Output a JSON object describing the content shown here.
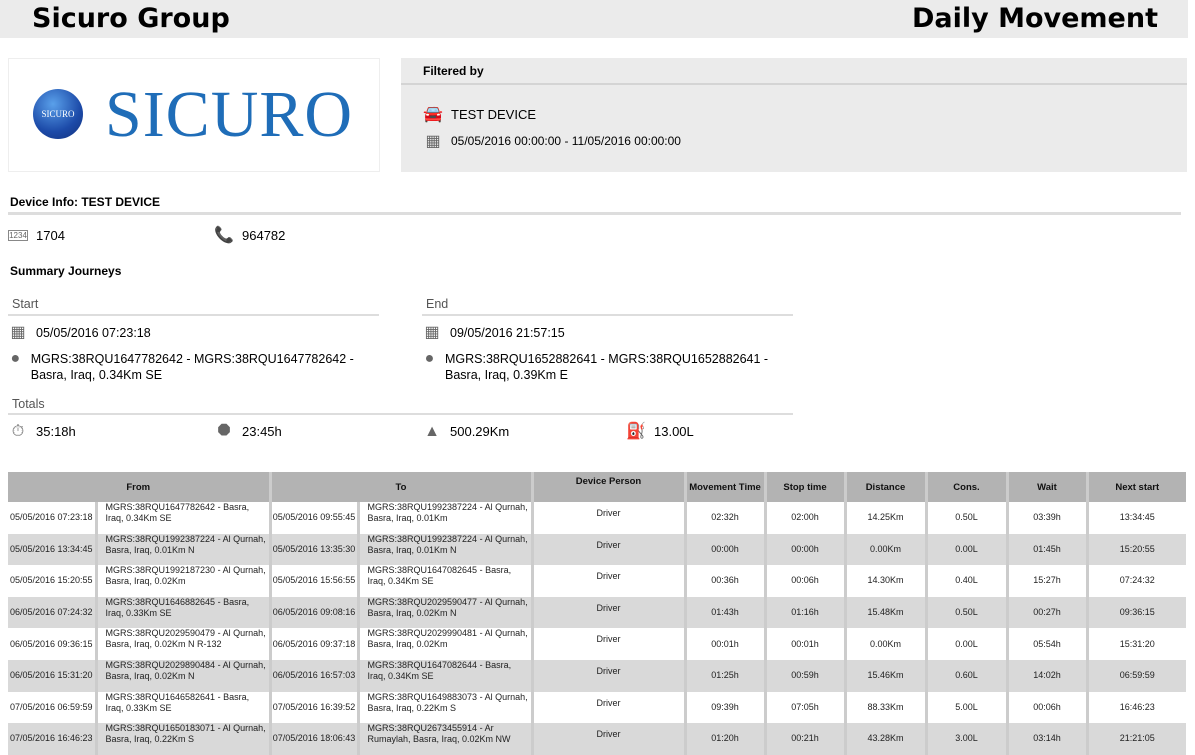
{
  "header": {
    "brand": "Sicuro Group",
    "report_title": "Daily Movement"
  },
  "logo": {
    "text": "SICURO",
    "badge": "SICURO"
  },
  "filter": {
    "heading": "Filtered by",
    "device": "TEST DEVICE",
    "date_range": "05/05/2016 00:00:00 - 11/05/2016 00:00:00",
    "icons": [
      "car-icon",
      "calendar-icon"
    ]
  },
  "device_info": {
    "heading": "Device Info: TEST DEVICE",
    "id": "1704",
    "phone": "964782"
  },
  "summary": {
    "heading": "Summary Journeys",
    "start_label": "Start",
    "end_label": "End",
    "start_date": "05/05/2016 07:23:18",
    "start_location": "MGRS:38RQU1647782642 - MGRS:38RQU1647782642 - Basra, Iraq, 0.34Km SE",
    "end_date": "09/05/2016 21:57:15",
    "end_location": "MGRS:38RQU1652882641 - MGRS:38RQU1652882641 - Basra, Iraq, 0.39Km E",
    "totals_label": "Totals",
    "movement_time": "35:18h",
    "stop_time": "23:45h",
    "distance": "500.29Km",
    "fuel": "13.00L"
  },
  "table": {
    "headers": {
      "from": "From",
      "to": "To",
      "person": "Device Person",
      "movement": "Movement Time",
      "stop": "Stop time",
      "distance": "Distance",
      "cons": "Cons.",
      "wait": "Wait",
      "next": "Next start"
    },
    "rows": [
      [
        "05/05/2016 07:23:18",
        "MGRS:38RQU1647782642 - Basra, Iraq, 0.34Km SE",
        "05/05/2016 09:55:45",
        "MGRS:38RQU1992387224 - Al Qurnah, Basra, Iraq, 0.01Km",
        "Driver",
        "02:32h",
        "02:00h",
        "14.25Km",
        "0.50L",
        "03:39h",
        "13:34:45"
      ],
      [
        "05/05/2016 13:34:45",
        "MGRS:38RQU1992387224 - Al Qurnah, Basra, Iraq, 0.01Km N",
        "05/05/2016 13:35:30",
        "MGRS:38RQU1992387224 - Al Qurnah, Basra, Iraq, 0.01Km N",
        "Driver",
        "00:00h",
        "00:00h",
        "0.00Km",
        "0.00L",
        "01:45h",
        "15:20:55"
      ],
      [
        "05/05/2016 15:20:55",
        "MGRS:38RQU1992187230 - Al Qurnah, Basra, Iraq, 0.02Km",
        "05/05/2016 15:56:55",
        "MGRS:38RQU1647082645 - Basra, Iraq, 0.34Km SE",
        "Driver",
        "00:36h",
        "00:06h",
        "14.30Km",
        "0.40L",
        "15:27h",
        "07:24:32"
      ],
      [
        "06/05/2016 07:24:32",
        "MGRS:38RQU1646882645 - Basra, Iraq, 0.33Km SE",
        "06/05/2016 09:08:16",
        "MGRS:38RQU2029590477 - Al Qurnah, Basra, Iraq, 0.02Km N",
        "Driver",
        "01:43h",
        "01:16h",
        "15.48Km",
        "0.50L",
        "00:27h",
        "09:36:15"
      ],
      [
        "06/05/2016 09:36:15",
        "MGRS:38RQU2029590479 - Al Qurnah, Basra, Iraq, 0.02Km N R-132",
        "06/05/2016 09:37:18",
        "MGRS:38RQU2029990481 - Al Qurnah, Basra, Iraq, 0.02Km",
        "Driver",
        "00:01h",
        "00:01h",
        "0.00Km",
        "0.00L",
        "05:54h",
        "15:31:20"
      ],
      [
        "06/05/2016 15:31:20",
        "MGRS:38RQU2029890484 - Al Qurnah, Basra, Iraq, 0.02Km N",
        "06/05/2016 16:57:03",
        "MGRS:38RQU1647082644 - Basra, Iraq, 0.34Km SE",
        "Driver",
        "01:25h",
        "00:59h",
        "15.46Km",
        "0.60L",
        "14:02h",
        "06:59:59"
      ],
      [
        "07/05/2016 06:59:59",
        "MGRS:38RQU1646582641 - Basra, Iraq, 0.33Km SE",
        "07/05/2016 16:39:52",
        "MGRS:38RQU1649883073 - Al Qurnah, Basra, Iraq, 0.22Km S",
        "Driver",
        "09:39h",
        "07:05h",
        "88.33Km",
        "5.00L",
        "00:06h",
        "16:46:23"
      ],
      [
        "07/05/2016 16:46:23",
        "MGRS:38RQU1650183071 - Al Qurnah, Basra, Iraq, 0.22Km S",
        "07/05/2016 18:06:43",
        "MGRS:38RQU2673455914 - Ar Rumaylah, Basra, Iraq, 0.02Km NW",
        "Driver",
        "01:20h",
        "00:21h",
        "43.28Km",
        "3.00L",
        "03:14h",
        "21:21:05"
      ]
    ]
  }
}
